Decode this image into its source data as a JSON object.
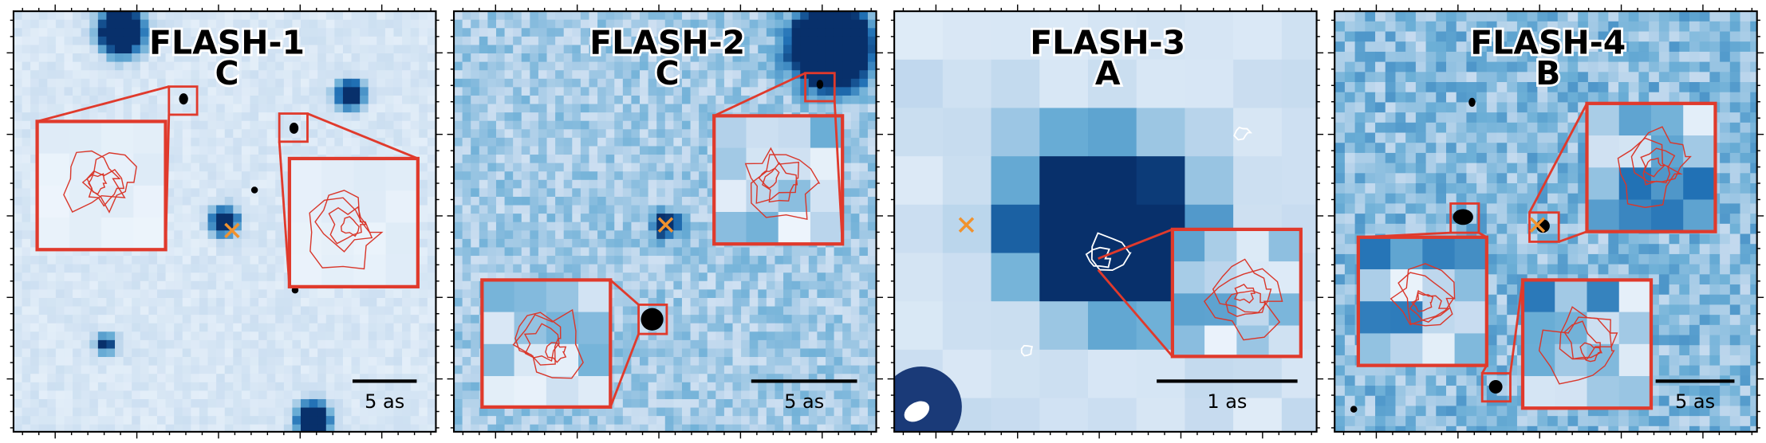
{
  "panels": [
    {
      "title": "FLASH-1",
      "grade": "C",
      "scale_label": "5 as"
    },
    {
      "title": "FLASH-2",
      "grade": "C",
      "scale_label": "5 as"
    },
    {
      "title": "FLASH-3",
      "grade": "A",
      "scale_label": "1 as"
    },
    {
      "title": "FLASH-4",
      "grade": "B",
      "scale_label": "5 as"
    }
  ]
}
